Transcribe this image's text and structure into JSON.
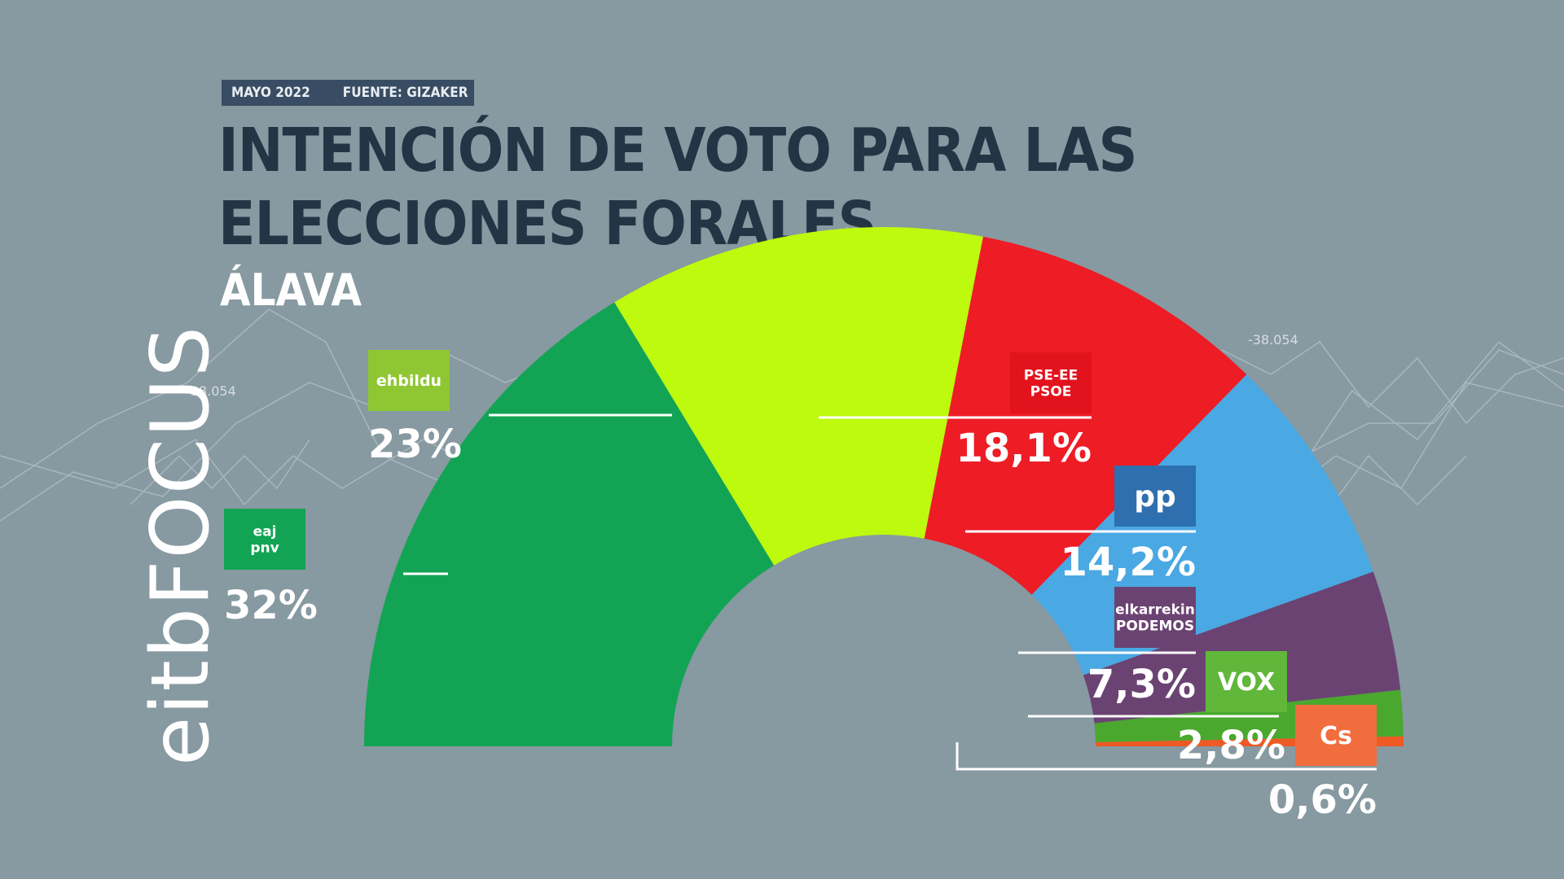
{
  "header": {
    "date": "MAYO 2022",
    "source": "FUENTE: GIZAKER",
    "title": "INTENCIÓN DE VOTO PARA LAS ELECCIONES FORALES",
    "subtitle": "ÁLAVA"
  },
  "brand": {
    "name": "eitbFOCUS"
  },
  "background": {
    "decor_values": [
      "-38.054",
      "-38.054"
    ]
  },
  "chart_data": {
    "type": "pie",
    "shape": "half-donut",
    "title": "INTENCIÓN DE VOTO PARA LAS ELECCIONES FORALES",
    "subtitle": "ÁLAVA",
    "categories": [
      "EAJ-PNV",
      "EH Bildu",
      "PSE-EE PSOE",
      "PP",
      "Elkarrekin Podemos",
      "VOX",
      "Cs"
    ],
    "values": [
      32,
      23,
      18.1,
      14.2,
      7.3,
      2.8,
      0.6
    ],
    "value_labels": [
      "32%",
      "23%",
      "18,1%",
      "14,2%",
      "7,3%",
      "2,8%",
      "0,6%"
    ],
    "colors": [
      "#12a454",
      "#bdfa0e",
      "#ee1c25",
      "#4aa8e3",
      "#6b4373",
      "#4aa82e",
      "#ee5a24"
    ],
    "logos": [
      "eaj pnv",
      "ehbildu",
      "PSE-EE PSOE",
      "pp",
      "elkarrekin PODEMOS",
      "VOX",
      "Cs"
    ],
    "logo_colors": [
      "#12a454",
      "#8fc732",
      "#e3131d",
      "#2e6fb0",
      "#6b4373",
      "#60b73a",
      "#f26d3d"
    ]
  }
}
